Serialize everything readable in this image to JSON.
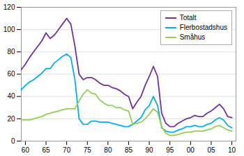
{
  "chart_data": {
    "type": "line",
    "x": [
      59,
      60,
      61,
      62,
      63,
      64,
      65,
      66,
      67,
      68,
      69,
      70,
      71,
      72,
      73,
      74,
      75,
      76,
      77,
      78,
      79,
      80,
      81,
      82,
      83,
      84,
      85,
      86,
      87,
      88,
      89,
      90,
      91,
      92,
      93,
      94,
      95,
      96,
      97,
      98,
      99,
      100,
      101,
      102,
      103,
      104,
      105,
      106,
      107,
      108,
      109,
      110
    ],
    "series": [
      {
        "name": "Totalt",
        "color": "#7030a0",
        "values": [
          64,
          69,
          75,
          80,
          85,
          90,
          97,
          92,
          95,
          100,
          105,
          110,
          105,
          85,
          60,
          55,
          57,
          57,
          55,
          52,
          50,
          50,
          48,
          47,
          45,
          42,
          40,
          29,
          35,
          40,
          50,
          58,
          67,
          58,
          25,
          16,
          13,
          13,
          16,
          18,
          20,
          21,
          23,
          22,
          22,
          25,
          27,
          30,
          33,
          29,
          22,
          21
        ]
      },
      {
        "name": "Flerbostadshus",
        "color": "#00b0f0",
        "values": [
          46,
          50,
          53,
          55,
          58,
          61,
          65,
          65,
          70,
          73,
          76,
          78,
          75,
          55,
          20,
          15,
          15,
          18,
          18,
          17,
          17,
          17,
          16,
          15,
          14,
          13,
          13,
          15,
          18,
          21,
          28,
          32,
          40,
          32,
          12,
          9,
          8,
          8,
          10,
          11,
          13,
          13,
          14,
          13,
          13,
          15,
          16,
          19,
          21,
          19,
          14,
          12
        ]
      },
      {
        "name": "Småhus",
        "color": "#92d050",
        "values": [
          19,
          19,
          19,
          20,
          21,
          22,
          24,
          25,
          26,
          27,
          28,
          29,
          29,
          29,
          36,
          42,
          46,
          43,
          42,
          37,
          34,
          32,
          32,
          30,
          30,
          28,
          27,
          15,
          16,
          17,
          20,
          24,
          29,
          26,
          13,
          7,
          5,
          5,
          6,
          7,
          8,
          8,
          9,
          9,
          9,
          10,
          11,
          13,
          14,
          12,
          10,
          9
        ]
      }
    ],
    "xlim": [
      59,
      111
    ],
    "xticks": [
      60,
      65,
      70,
      75,
      80,
      85,
      90,
      95,
      {
        "value": 100,
        "label": "00"
      },
      {
        "value": 105,
        "label": "05"
      },
      {
        "value": 110,
        "label": "10"
      }
    ],
    "ylim": [
      0,
      120
    ],
    "yticks": [
      0,
      20,
      40,
      60,
      80,
      100,
      120
    ],
    "grid": true,
    "legend": "top-right"
  }
}
